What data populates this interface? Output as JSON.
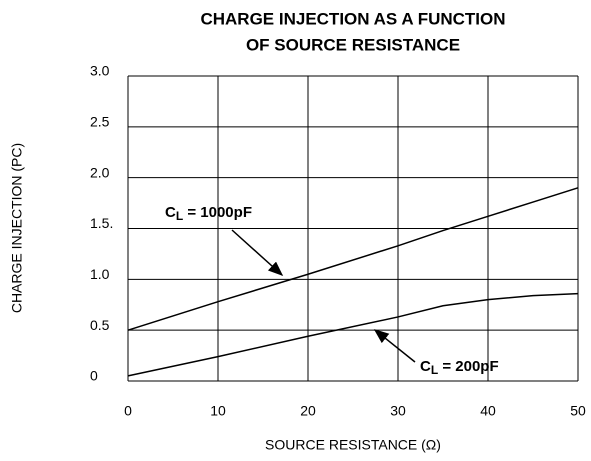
{
  "chart_data": {
    "type": "line",
    "title": [
      "CHARGE INJECTION AS A FUNCTION",
      "OF SOURCE RESISTANCE"
    ],
    "x_label": "SOURCE RESISTANCE (Ω)",
    "y_label": "CHARGE INJECTION (PC)",
    "x": [
      0,
      10,
      20,
      30,
      35,
      40,
      45,
      50
    ],
    "series": [
      {
        "name": "CL = 1000pF",
        "color": "#000000",
        "values": [
          0.5,
          0.78,
          1.05,
          1.33,
          1.48,
          1.62,
          1.76,
          1.9
        ]
      },
      {
        "name": "CL = 200pF",
        "color": "#000000",
        "values": [
          0.05,
          0.24,
          0.44,
          0.63,
          0.74,
          0.8,
          0.84,
          0.86
        ]
      }
    ],
    "xlim": [
      0,
      50
    ],
    "xticks": [
      0,
      10,
      20,
      30,
      40,
      50
    ],
    "ylim": [
      0,
      3
    ],
    "yticks": [
      0,
      0.5,
      {
        "value": 1,
        "label": "1.0"
      },
      {
        "value": 1.5,
        "label": "1.5."
      },
      {
        "value": 2,
        "label": "2.0"
      },
      2.5,
      {
        "value": 3,
        "label": "3.0"
      }
    ],
    "grid": true
  }
}
